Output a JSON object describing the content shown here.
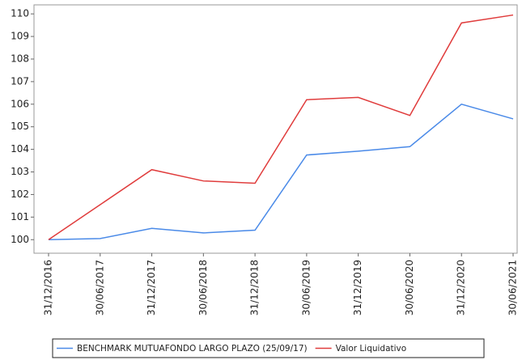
{
  "chart_data": {
    "type": "line",
    "categories": [
      "31/12/2016",
      "30/06/2017",
      "31/12/2017",
      "30/06/2018",
      "31/12/2018",
      "30/06/2019",
      "31/12/2019",
      "30/06/2020",
      "31/12/2020",
      "30/06/2021"
    ],
    "series": [
      {
        "name": "BENCHMARK MUTUAFONDO LARGO PLAZO (25/09/17)",
        "color": "#4a8ae8",
        "values": [
          100,
          100.05,
          100.5,
          100.3,
          100.42,
          103.75,
          103.92,
          104.12,
          106.0,
          105.35
        ]
      },
      {
        "name": "Valor Liquidativo",
        "color": "#e03c3c",
        "values": [
          100,
          101.55,
          103.1,
          102.6,
          102.5,
          106.2,
          106.3,
          105.5,
          109.6,
          109.95
        ]
      }
    ],
    "ylim": [
      99.4,
      110.4
    ],
    "yticks": [
      100,
      101,
      102,
      103,
      104,
      105,
      106,
      107,
      108,
      109,
      110
    ]
  }
}
